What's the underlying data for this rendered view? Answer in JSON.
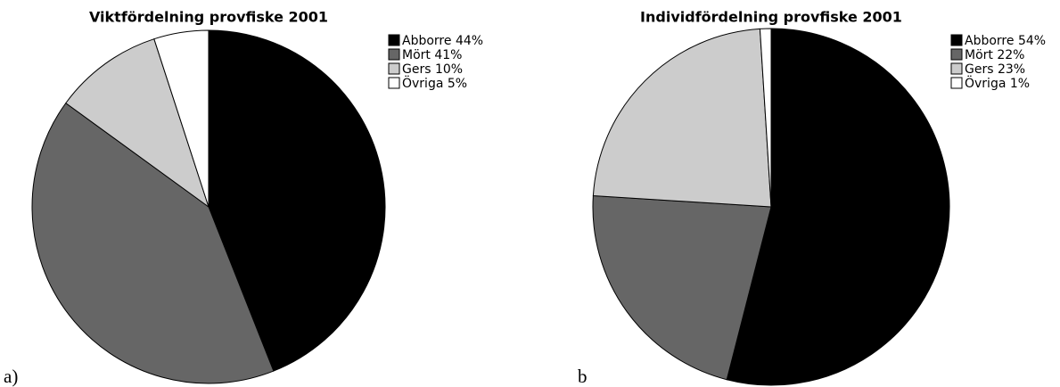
{
  "chart_data": [
    {
      "type": "pie",
      "title": "Viktfördelning provfiske 2001",
      "label": "a)",
      "categories": [
        "Abborre 44%",
        "Mört 41%",
        "Gers 10%",
        "Övriga 5%"
      ],
      "values": [
        44,
        41,
        10,
        5
      ],
      "colors": [
        "#000000",
        "#666666",
        "#cccccc",
        "#ffffff"
      ]
    },
    {
      "type": "pie",
      "title": "Individfördelning provfiske 2001",
      "label": "b",
      "categories": [
        "Abborre 54%",
        "Mört 22%",
        "Gers 23%",
        "Övriga 1%"
      ],
      "values": [
        54,
        22,
        23,
        1
      ],
      "colors": [
        "#000000",
        "#666666",
        "#cccccc",
        "#ffffff"
      ]
    }
  ]
}
